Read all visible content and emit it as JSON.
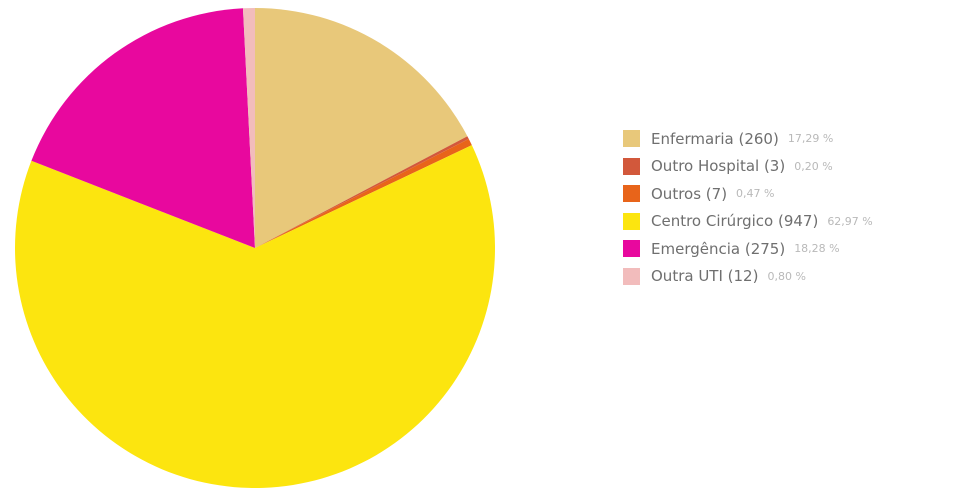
{
  "chart_data": {
    "type": "pie",
    "slices": [
      {
        "label": "Enfermaria (260)",
        "value": 260,
        "percent_label": "17,29 %",
        "color": "#e8c87a"
      },
      {
        "label": "Outro Hospital (3)",
        "value": 3,
        "percent_label": "0,20 %",
        "color": "#d2583b"
      },
      {
        "label": "Outros (7)",
        "value": 7,
        "percent_label": "0,47 %",
        "color": "#e8641a"
      },
      {
        "label": "Centro Cirúrgico (947)",
        "value": 947,
        "percent_label": "62,97 %",
        "color": "#fce50f"
      },
      {
        "label": "Emergência (275)",
        "value": 275,
        "percent_label": "18,28 %",
        "color": "#e8089e"
      },
      {
        "label": "Outra UTI (12)",
        "value": 12,
        "percent_label": "0,80 %",
        "color": "#f2bcbc"
      }
    ],
    "start": "12 o'clock",
    "direction": "clockwise",
    "legend_position": "right"
  }
}
